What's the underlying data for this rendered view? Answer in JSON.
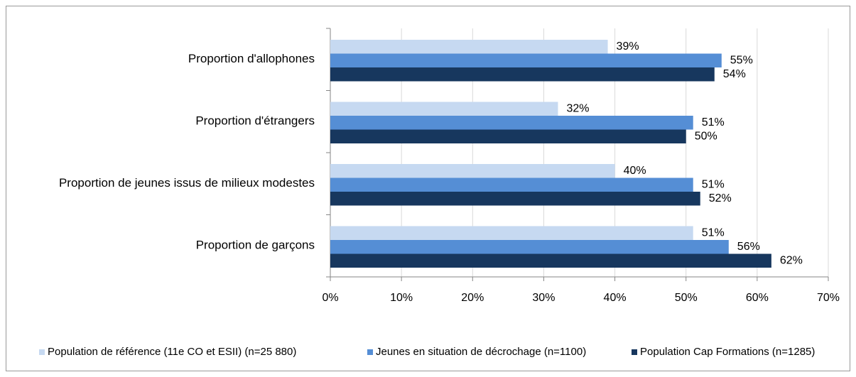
{
  "chart_data": {
    "type": "bar",
    "orientation": "horizontal",
    "categories": [
      "Proportion d'allophones",
      "Proportion d'étrangers",
      "Proportion de jeunes issus de milieux modestes",
      "Proportion de garçons"
    ],
    "series": [
      {
        "name": "Population de référence (11e CO et ESII) (n=25 880)",
        "color": "#c6d9f1",
        "values": [
          39,
          32,
          40,
          51
        ],
        "value_labels": [
          "39%",
          "32%",
          "40%",
          "51%"
        ]
      },
      {
        "name": "Jeunes en situation de décrochage (n=1100)",
        "color": "#558ed5",
        "values": [
          55,
          51,
          51,
          56
        ],
        "value_labels": [
          "55%",
          "51%",
          "51%",
          "56%"
        ]
      },
      {
        "name": "Population Cap Formations (n=1285)",
        "color": "#17375e",
        "values": [
          54,
          50,
          52,
          62
        ],
        "value_labels": [
          "54%",
          "50%",
          "52%",
          "62%"
        ]
      }
    ],
    "xlim": [
      0,
      70
    ],
    "xticks": [
      {
        "value": 0,
        "label": "0%"
      },
      {
        "value": 10,
        "label": "10%"
      },
      {
        "value": 20,
        "label": "20%"
      },
      {
        "value": 30,
        "label": "30%"
      },
      {
        "value": 40,
        "label": "40%"
      },
      {
        "value": 50,
        "label": "50%"
      },
      {
        "value": 60,
        "label": "60%"
      },
      {
        "value": 70,
        "label": "70%"
      }
    ],
    "grid": true,
    "legend": "bottom"
  }
}
